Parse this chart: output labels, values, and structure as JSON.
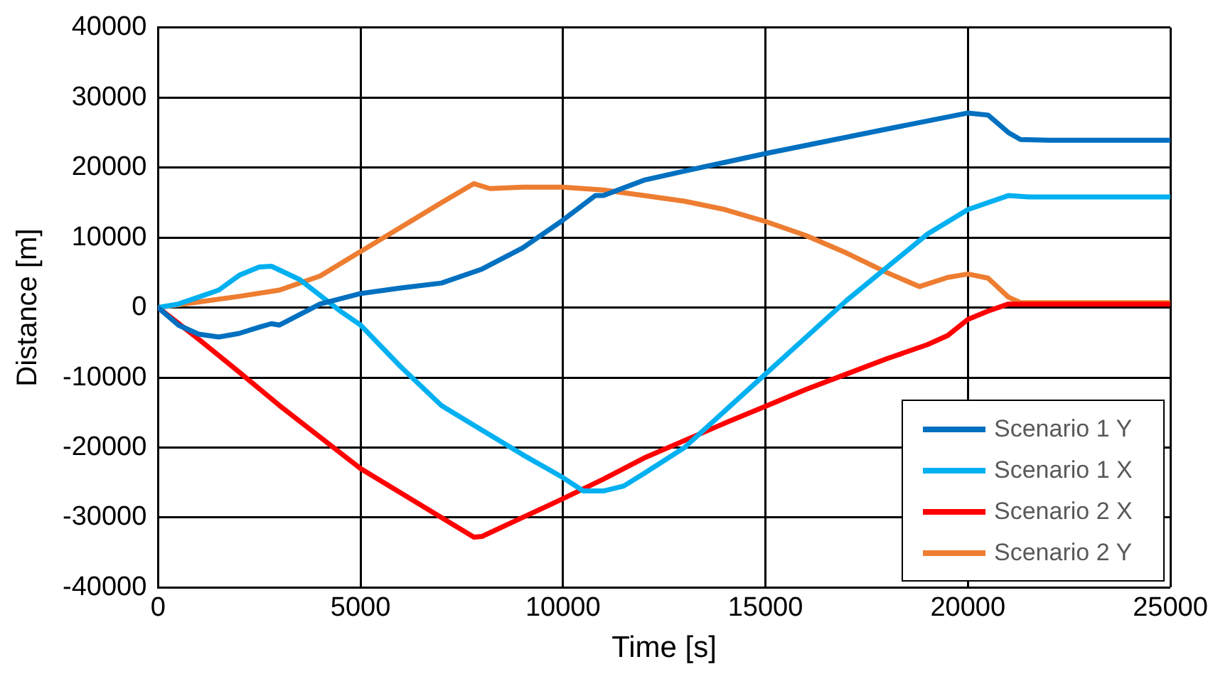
{
  "chart_data": {
    "type": "line",
    "xlabel": "Time [s]",
    "ylabel": "Distance [m]",
    "xlim": [
      0,
      25000
    ],
    "xticks": [
      0,
      5000,
      10000,
      15000,
      20000,
      25000
    ],
    "ylim": [
      -40000,
      40000
    ],
    "yticks": [
      -40000,
      -30000,
      -20000,
      -10000,
      0,
      10000,
      20000,
      30000,
      40000
    ],
    "grid": true,
    "legend": "bottom right",
    "marker": "none",
    "line_style": "solid",
    "series": [
      {
        "name": "Scenario 1 Y",
        "color": "#0070c0",
        "x": [
          0,
          500,
          1000,
          1500,
          2000,
          2500,
          2800,
          3000,
          3500,
          4000,
          5000,
          6000,
          7000,
          8000,
          9000,
          10000,
          10800,
          11000,
          12000,
          13000,
          15000,
          18000,
          20000,
          20500,
          21000,
          21300,
          22000,
          25000
        ],
        "values": [
          0,
          -2500,
          -3800,
          -4200,
          -3700,
          -2800,
          -2300,
          -2500,
          -1000,
          500,
          2000,
          2800,
          3500,
          5500,
          8500,
          12500,
          16000,
          16000,
          18200,
          19500,
          22000,
          25500,
          27800,
          27500,
          25000,
          24000,
          23900,
          23900
        ]
      },
      {
        "name": "Scenario 1 X",
        "color": "#00b0f0",
        "x": [
          0,
          500,
          1000,
          1500,
          2000,
          2500,
          2800,
          3500,
          4500,
          5000,
          6000,
          7000,
          8000,
          9000,
          10000,
          10500,
          11000,
          11500,
          12000,
          13000,
          15000,
          17000,
          19000,
          20000,
          21000,
          21500,
          25000
        ],
        "values": [
          0,
          500,
          1500,
          2500,
          4600,
          5800,
          5900,
          4000,
          -500,
          -2500,
          -8500,
          -14000,
          -17500,
          -21000,
          -24300,
          -26200,
          -26200,
          -25500,
          -23700,
          -20000,
          -9500,
          1000,
          10500,
          14000,
          16000,
          15800,
          15800
        ]
      },
      {
        "name": "Scenario 2 X",
        "color": "#ff0000",
        "x": [
          0,
          1000,
          2000,
          3000,
          4000,
          5000,
          6000,
          7000,
          7800,
          8000,
          9000,
          10000,
          11000,
          12000,
          13000,
          14000,
          15000,
          16000,
          17000,
          18000,
          19000,
          19500,
          20000,
          20500,
          21000,
          25000
        ],
        "values": [
          0,
          -4500,
          -9200,
          -14000,
          -18500,
          -23000,
          -26500,
          -30000,
          -32800,
          -32700,
          -30000,
          -27300,
          -24500,
          -21500,
          -19000,
          -16500,
          -14100,
          -11700,
          -9500,
          -7300,
          -5300,
          -4000,
          -1700,
          -500,
          500,
          500
        ]
      },
      {
        "name": "Scenario 2 Y",
        "color": "#ed7d31",
        "x": [
          0,
          1000,
          2000,
          3000,
          4000,
          5000,
          6000,
          7000,
          7800,
          8200,
          9000,
          10000,
          11000,
          12000,
          13000,
          14000,
          15000,
          16000,
          17000,
          18000,
          18800,
          19500,
          20000,
          20500,
          21000,
          21300,
          25000
        ],
        "values": [
          0,
          800,
          1600,
          2500,
          4500,
          8000,
          11500,
          15000,
          17700,
          17000,
          17200,
          17200,
          16800,
          16000,
          15200,
          14000,
          12300,
          10300,
          7800,
          5000,
          3000,
          4300,
          4800,
          4200,
          1500,
          700,
          700
        ]
      }
    ]
  }
}
